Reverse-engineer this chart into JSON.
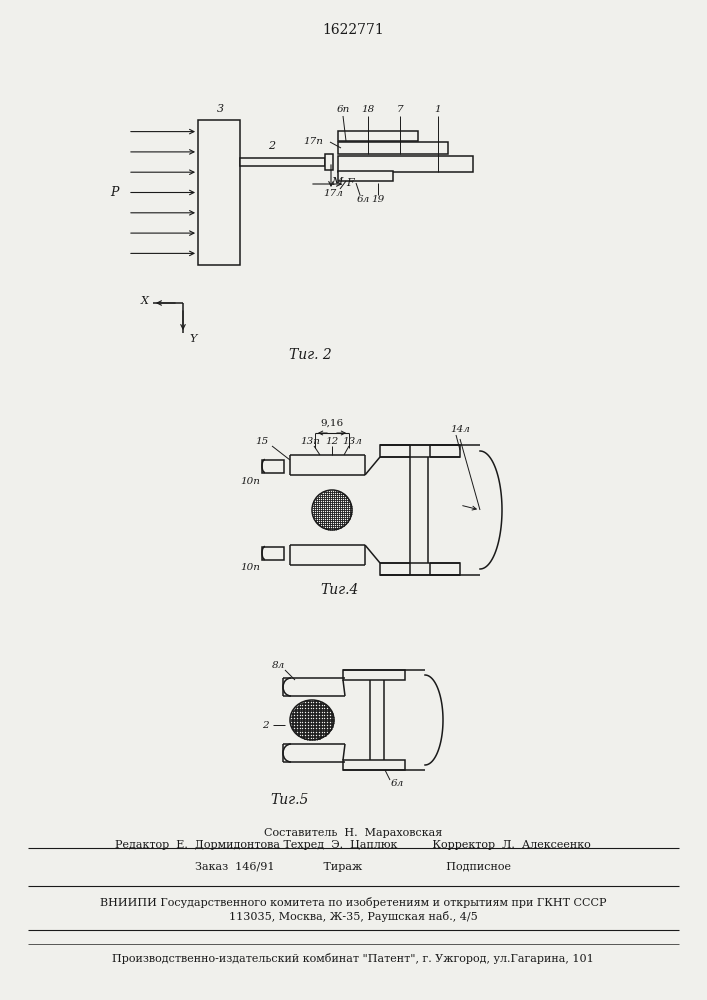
{
  "patent_number": "1622771",
  "fig2_caption": "Τиг. 2",
  "fig4_caption": "Τиг.4",
  "fig5_caption": "Τиг.5",
  "footer_line1": "Составитель  Н.  Мараховская",
  "footer_line2": "Редактор  Е.  Дормидонтова Техред  Э.  Цаплюк          Корректор  Л.  Алексеенко",
  "footer_line3": "Заказ  146/91              Тираж                        Подписное",
  "footer_line4": "ВНИИПИ Государственного комитета по изобретениям и открытиям при ГКНТ СССР",
  "footer_line5": "113035, Москва, Ж-35, Раушская наб., 4/5",
  "footer_line6": "Производственно-издательский комбинат \"Патент\", г. Ужгород, ул.Гагарина, 101",
  "bg_color": "#f0f0ec",
  "line_color": "#1a1a1a"
}
